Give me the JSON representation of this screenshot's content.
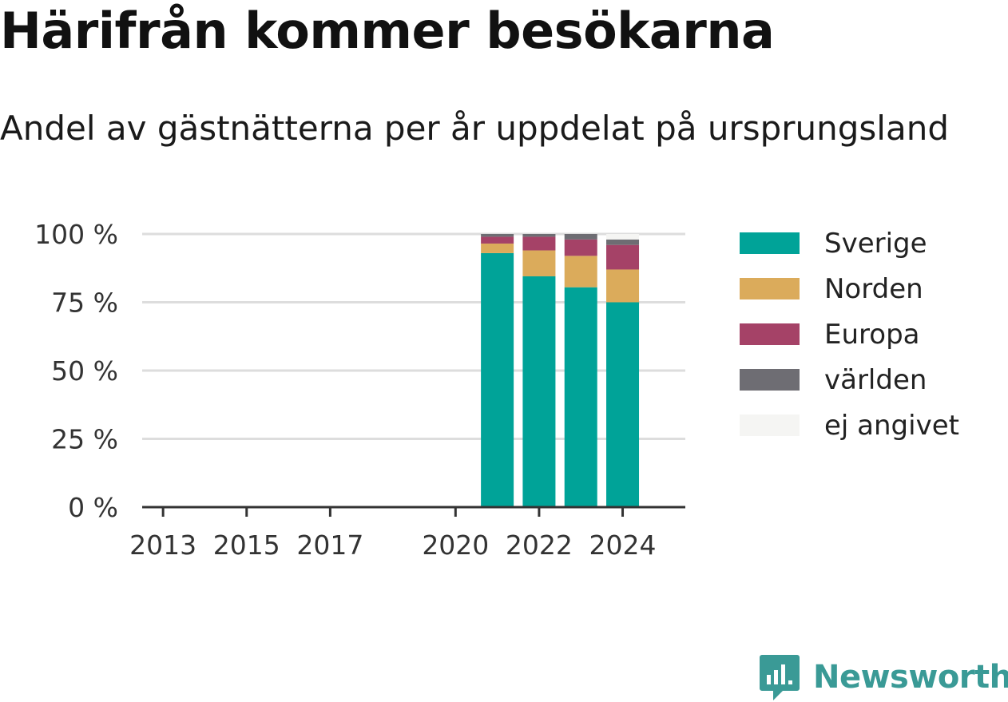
{
  "title": "Härifrån kommer besökarna",
  "subtitle": "Andel av gästnätterna per år uppdelat på ursprungsland",
  "brand": "Newsworthy",
  "colors": {
    "sverige": "#00a398",
    "norden": "#dbab5b",
    "europa": "#a54267",
    "varlden": "#6e6d73",
    "ej_angivet": "#f5f5f3",
    "gridline": "#dddddd",
    "axis": "#333333",
    "brand": "#3a9a96"
  },
  "legend": [
    {
      "label": "Sverige",
      "color": "#00a398"
    },
    {
      "label": "Norden",
      "color": "#dbab5b"
    },
    {
      "label": "Europa",
      "color": "#a54267"
    },
    {
      "label": "världen",
      "color": "#6e6d73"
    },
    {
      "label": "ej angivet",
      "color": "#f5f5f3"
    }
  ],
  "chart_data": {
    "type": "bar",
    "stacked": true,
    "x": [
      2021,
      2022,
      2023,
      2024
    ],
    "series": [
      {
        "name": "Sverige",
        "color": "#00a398",
        "values": [
          93,
          84.5,
          80.5,
          75
        ]
      },
      {
        "name": "Norden",
        "color": "#dbab5b",
        "values": [
          3.5,
          9.5,
          11.5,
          12
        ]
      },
      {
        "name": "Europa",
        "color": "#a54267",
        "values": [
          2.5,
          5,
          6,
          9
        ]
      },
      {
        "name": "världen",
        "color": "#6e6d73",
        "values": [
          1,
          1,
          2,
          2
        ]
      },
      {
        "name": "ej angivet",
        "color": "#f5f5f3",
        "values": [
          0,
          0,
          0,
          2
        ]
      }
    ],
    "xlim": [
      2012.5,
      2025.5
    ],
    "xticks": [
      2013,
      2015,
      2017,
      2020,
      2022,
      2024
    ],
    "xtick_labels": [
      "2013",
      "2015",
      "2017",
      "2020",
      "2022",
      "2024"
    ],
    "ylim": [
      0,
      100
    ],
    "yticks": [
      0,
      25,
      50,
      75,
      100
    ],
    "ytick_labels": [
      "0 %",
      "25 %",
      "50 %",
      "75 %",
      "100 %"
    ],
    "grid": true,
    "legend_position": "right"
  }
}
